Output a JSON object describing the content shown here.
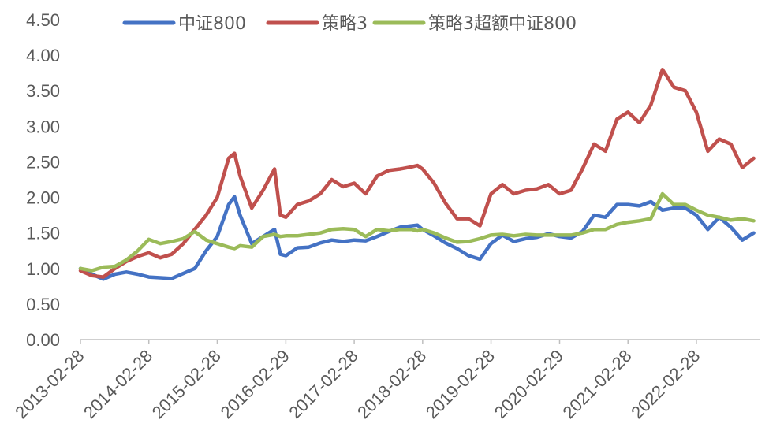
{
  "chart_data": {
    "type": "line",
    "title": "",
    "xlabel": "",
    "ylabel": "",
    "ylim": [
      0,
      4.5
    ],
    "yticks": [
      "0.00",
      "0.50",
      "1.00",
      "1.50",
      "2.00",
      "2.50",
      "3.00",
      "3.50",
      "4.00",
      "4.50"
    ],
    "x_tick_labels": [
      "2013-02-28",
      "2014-02-28",
      "2015-02-28",
      "2016-02-29",
      "2017-02-28",
      "2018-02-28",
      "2019-02-28",
      "2020-02-29",
      "2021-02-28",
      "2022-02-28"
    ],
    "grid": false,
    "legend_position": "top",
    "series": [
      {
        "name": "中证800",
        "color": "#4472C4",
        "points": [
          [
            "2013-02-28",
            1.0
          ],
          [
            "2013-04-30",
            0.92
          ],
          [
            "2013-06-30",
            0.85
          ],
          [
            "2013-08-31",
            0.92
          ],
          [
            "2013-10-31",
            0.95
          ],
          [
            "2013-12-31",
            0.92
          ],
          [
            "2014-02-28",
            0.88
          ],
          [
            "2014-04-30",
            0.87
          ],
          [
            "2014-06-30",
            0.86
          ],
          [
            "2014-08-31",
            0.93
          ],
          [
            "2014-10-31",
            1.0
          ],
          [
            "2014-12-31",
            1.25
          ],
          [
            "2015-02-28",
            1.45
          ],
          [
            "2015-04-30",
            1.9
          ],
          [
            "2015-05-31",
            2.01
          ],
          [
            "2015-06-30",
            1.75
          ],
          [
            "2015-08-31",
            1.35
          ],
          [
            "2015-10-31",
            1.45
          ],
          [
            "2015-12-31",
            1.55
          ],
          [
            "2016-01-31",
            1.2
          ],
          [
            "2016-02-29",
            1.18
          ],
          [
            "2016-04-30",
            1.29
          ],
          [
            "2016-06-30",
            1.3
          ],
          [
            "2016-08-31",
            1.36
          ],
          [
            "2016-10-31",
            1.4
          ],
          [
            "2016-12-31",
            1.38
          ],
          [
            "2017-02-28",
            1.4
          ],
          [
            "2017-04-30",
            1.39
          ],
          [
            "2017-06-30",
            1.45
          ],
          [
            "2017-08-31",
            1.52
          ],
          [
            "2017-10-31",
            1.58
          ],
          [
            "2017-12-31",
            1.6
          ],
          [
            "2018-01-31",
            1.61
          ],
          [
            "2018-02-28",
            1.55
          ],
          [
            "2018-04-30",
            1.46
          ],
          [
            "2018-06-30",
            1.36
          ],
          [
            "2018-08-31",
            1.28
          ],
          [
            "2018-10-31",
            1.18
          ],
          [
            "2018-12-31",
            1.13
          ],
          [
            "2019-02-28",
            1.35
          ],
          [
            "2019-04-30",
            1.47
          ],
          [
            "2019-06-30",
            1.38
          ],
          [
            "2019-08-31",
            1.42
          ],
          [
            "2019-10-31",
            1.44
          ],
          [
            "2019-12-31",
            1.49
          ],
          [
            "2020-02-29",
            1.45
          ],
          [
            "2020-04-30",
            1.43
          ],
          [
            "2020-06-30",
            1.52
          ],
          [
            "2020-08-31",
            1.75
          ],
          [
            "2020-10-31",
            1.72
          ],
          [
            "2020-12-31",
            1.9
          ],
          [
            "2021-02-28",
            1.9
          ],
          [
            "2021-04-30",
            1.88
          ],
          [
            "2021-06-30",
            1.94
          ],
          [
            "2021-08-31",
            1.82
          ],
          [
            "2021-10-31",
            1.85
          ],
          [
            "2021-12-31",
            1.85
          ],
          [
            "2022-02-28",
            1.75
          ],
          [
            "2022-04-30",
            1.55
          ],
          [
            "2022-06-30",
            1.72
          ],
          [
            "2022-08-31",
            1.58
          ],
          [
            "2022-10-31",
            1.4
          ],
          [
            "2022-12-31",
            1.5
          ]
        ]
      },
      {
        "name": "策略3",
        "color": "#C0504D",
        "points": [
          [
            "2013-02-28",
            0.97
          ],
          [
            "2013-04-30",
            0.9
          ],
          [
            "2013-06-30",
            0.88
          ],
          [
            "2013-08-31",
            1.0
          ],
          [
            "2013-10-31",
            1.1
          ],
          [
            "2013-12-31",
            1.17
          ],
          [
            "2014-02-28",
            1.22
          ],
          [
            "2014-04-30",
            1.15
          ],
          [
            "2014-06-30",
            1.2
          ],
          [
            "2014-08-31",
            1.35
          ],
          [
            "2014-10-31",
            1.55
          ],
          [
            "2014-12-31",
            1.75
          ],
          [
            "2015-02-28",
            2.0
          ],
          [
            "2015-04-30",
            2.55
          ],
          [
            "2015-05-31",
            2.62
          ],
          [
            "2015-06-30",
            2.3
          ],
          [
            "2015-08-31",
            1.85
          ],
          [
            "2015-10-31",
            2.1
          ],
          [
            "2015-12-31",
            2.4
          ],
          [
            "2016-01-31",
            1.75
          ],
          [
            "2016-02-29",
            1.72
          ],
          [
            "2016-04-30",
            1.9
          ],
          [
            "2016-06-30",
            1.95
          ],
          [
            "2016-08-31",
            2.05
          ],
          [
            "2016-10-31",
            2.25
          ],
          [
            "2016-12-31",
            2.15
          ],
          [
            "2017-02-28",
            2.2
          ],
          [
            "2017-04-30",
            2.05
          ],
          [
            "2017-06-30",
            2.3
          ],
          [
            "2017-08-31",
            2.38
          ],
          [
            "2017-10-31",
            2.4
          ],
          [
            "2017-12-31",
            2.43
          ],
          [
            "2018-01-31",
            2.45
          ],
          [
            "2018-02-28",
            2.4
          ],
          [
            "2018-04-30",
            2.2
          ],
          [
            "2018-06-30",
            1.92
          ],
          [
            "2018-08-31",
            1.7
          ],
          [
            "2018-10-31",
            1.7
          ],
          [
            "2018-12-31",
            1.6
          ],
          [
            "2019-02-28",
            2.05
          ],
          [
            "2019-04-30",
            2.18
          ],
          [
            "2019-06-30",
            2.05
          ],
          [
            "2019-08-31",
            2.1
          ],
          [
            "2019-10-31",
            2.12
          ],
          [
            "2019-12-31",
            2.18
          ],
          [
            "2020-02-29",
            2.05
          ],
          [
            "2020-04-30",
            2.1
          ],
          [
            "2020-06-30",
            2.4
          ],
          [
            "2020-08-31",
            2.75
          ],
          [
            "2020-10-31",
            2.65
          ],
          [
            "2020-12-31",
            3.1
          ],
          [
            "2021-02-28",
            3.2
          ],
          [
            "2021-04-30",
            3.05
          ],
          [
            "2021-06-30",
            3.3
          ],
          [
            "2021-08-31",
            3.8
          ],
          [
            "2021-10-31",
            3.55
          ],
          [
            "2021-12-31",
            3.5
          ],
          [
            "2022-02-28",
            3.2
          ],
          [
            "2022-04-30",
            2.65
          ],
          [
            "2022-06-30",
            2.82
          ],
          [
            "2022-08-31",
            2.75
          ],
          [
            "2022-10-31",
            2.42
          ],
          [
            "2022-12-31",
            2.55
          ]
        ]
      },
      {
        "name": "策略3超额中证800",
        "color": "#9BBB59",
        "points": [
          [
            "2013-02-28",
            1.0
          ],
          [
            "2013-04-30",
            0.97
          ],
          [
            "2013-06-30",
            1.02
          ],
          [
            "2013-08-31",
            1.03
          ],
          [
            "2013-10-31",
            1.12
          ],
          [
            "2013-12-31",
            1.25
          ],
          [
            "2014-02-28",
            1.41
          ],
          [
            "2014-04-30",
            1.35
          ],
          [
            "2014-06-30",
            1.38
          ],
          [
            "2014-08-31",
            1.42
          ],
          [
            "2014-10-31",
            1.52
          ],
          [
            "2014-12-31",
            1.4
          ],
          [
            "2015-02-28",
            1.35
          ],
          [
            "2015-04-30",
            1.3
          ],
          [
            "2015-05-31",
            1.28
          ],
          [
            "2015-06-30",
            1.32
          ],
          [
            "2015-08-31",
            1.3
          ],
          [
            "2015-10-31",
            1.45
          ],
          [
            "2015-12-31",
            1.48
          ],
          [
            "2016-01-31",
            1.45
          ],
          [
            "2016-02-29",
            1.46
          ],
          [
            "2016-04-30",
            1.46
          ],
          [
            "2016-06-30",
            1.48
          ],
          [
            "2016-08-31",
            1.5
          ],
          [
            "2016-10-31",
            1.55
          ],
          [
            "2016-12-31",
            1.56
          ],
          [
            "2017-02-28",
            1.55
          ],
          [
            "2017-04-30",
            1.45
          ],
          [
            "2017-06-30",
            1.55
          ],
          [
            "2017-08-31",
            1.53
          ],
          [
            "2017-10-31",
            1.55
          ],
          [
            "2017-12-31",
            1.55
          ],
          [
            "2018-01-31",
            1.53
          ],
          [
            "2018-02-28",
            1.55
          ],
          [
            "2018-04-30",
            1.5
          ],
          [
            "2018-06-30",
            1.43
          ],
          [
            "2018-08-31",
            1.37
          ],
          [
            "2018-10-31",
            1.38
          ],
          [
            "2018-12-31",
            1.42
          ],
          [
            "2019-02-28",
            1.47
          ],
          [
            "2019-04-30",
            1.48
          ],
          [
            "2019-06-30",
            1.46
          ],
          [
            "2019-08-31",
            1.48
          ],
          [
            "2019-10-31",
            1.47
          ],
          [
            "2019-12-31",
            1.47
          ],
          [
            "2020-02-29",
            1.47
          ],
          [
            "2020-04-30",
            1.47
          ],
          [
            "2020-06-30",
            1.5
          ],
          [
            "2020-08-31",
            1.55
          ],
          [
            "2020-10-31",
            1.55
          ],
          [
            "2020-12-31",
            1.62
          ],
          [
            "2021-02-28",
            1.65
          ],
          [
            "2021-04-30",
            1.67
          ],
          [
            "2021-06-30",
            1.7
          ],
          [
            "2021-08-31",
            2.05
          ],
          [
            "2021-10-31",
            1.9
          ],
          [
            "2021-12-31",
            1.9
          ],
          [
            "2022-02-28",
            1.82
          ],
          [
            "2022-04-30",
            1.75
          ],
          [
            "2022-06-30",
            1.72
          ],
          [
            "2022-08-31",
            1.68
          ],
          [
            "2022-10-31",
            1.7
          ],
          [
            "2022-12-31",
            1.67
          ]
        ]
      }
    ]
  }
}
